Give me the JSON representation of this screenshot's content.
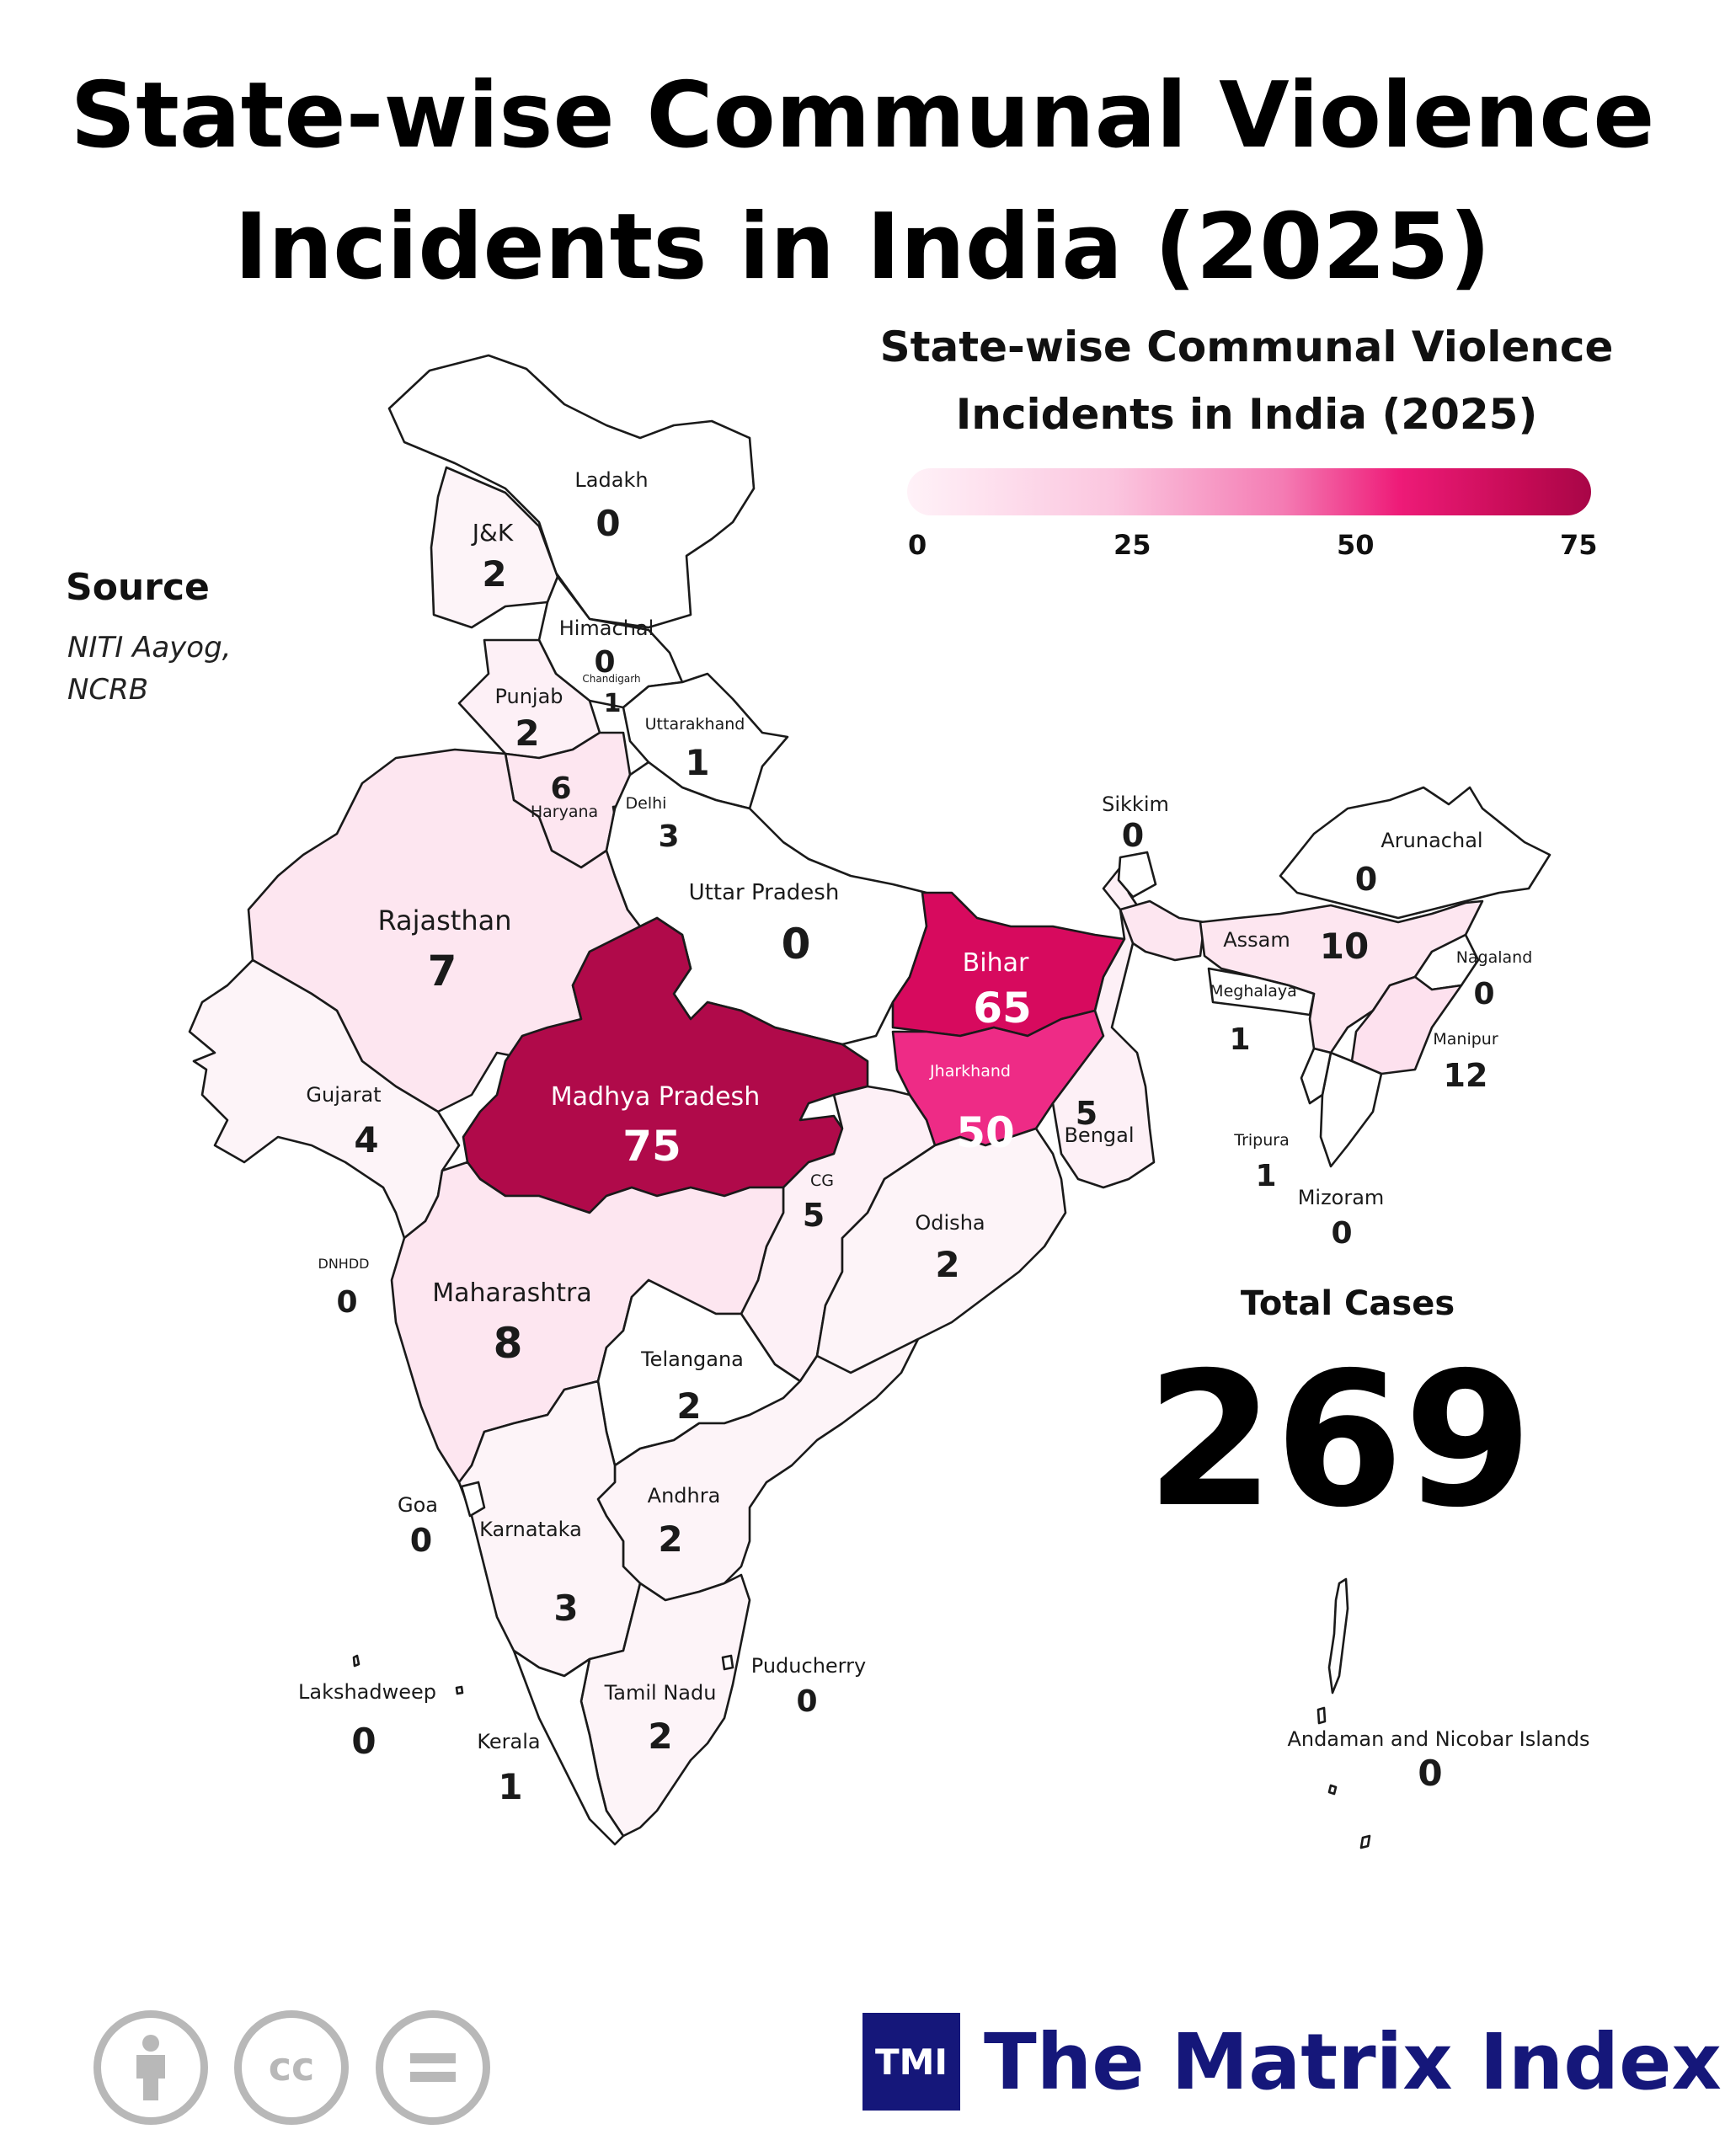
{
  "title": "State-wise Communal Violence Incidents in India (2025)",
  "legend": {
    "title": "State-wise Communal Violence Incidents in India (2025)",
    "ticks": [
      "0",
      "25",
      "50",
      "75"
    ],
    "colors": [
      "#fff2f8",
      "#f47bb3",
      "#ee1b78",
      "#a80647"
    ]
  },
  "source": {
    "heading": "Source",
    "lines": [
      "NITI Aayog,",
      "NCRB"
    ]
  },
  "states": {
    "ladakh": {
      "name": "Ladakh",
      "value": "0"
    },
    "jk": {
      "name": "J&K",
      "value": "2"
    },
    "himachal": {
      "name": "Himachal",
      "value": "0"
    },
    "chandigarh": {
      "name": "Chandigarh",
      "value": "1"
    },
    "punjab": {
      "name": "Punjab",
      "value": "2"
    },
    "uttarakhand": {
      "name": "Uttarakhand",
      "value": "1"
    },
    "haryana": {
      "name": "Haryana",
      "value": "6"
    },
    "delhi": {
      "name": "Delhi",
      "value": "3"
    },
    "rajasthan": {
      "name": "Rajasthan",
      "value": "7"
    },
    "uttar_pradesh": {
      "name": "Uttar Pradesh",
      "value": "0"
    },
    "bihar": {
      "name": "Bihar",
      "value": "65"
    },
    "jharkhand": {
      "name": "Jharkhand",
      "value": "50"
    },
    "bengal": {
      "name": "Bengal",
      "value": "5"
    },
    "sikkim": {
      "name": "Sikkim",
      "value": "0"
    },
    "arunachal": {
      "name": "Arunachal",
      "value": "0"
    },
    "assam": {
      "name": "Assam",
      "value": "10"
    },
    "meghalaya": {
      "name": "Meghalaya",
      "value": "1"
    },
    "nagaland": {
      "name": "Nagaland",
      "value": "0"
    },
    "manipur": {
      "name": "Manipur",
      "value": "12"
    },
    "tripura": {
      "name": "Tripura",
      "value": "1"
    },
    "mizoram": {
      "name": "Mizoram",
      "value": "0"
    },
    "gujarat": {
      "name": "Gujarat",
      "value": "4"
    },
    "madhya_pradesh": {
      "name": "Madhya Pradesh",
      "value": "75"
    },
    "cg": {
      "name": "CG",
      "value": "5"
    },
    "odisha": {
      "name": "Odisha",
      "value": "2"
    },
    "dnhdd": {
      "name": "DNHDD",
      "value": "0"
    },
    "maharashtra": {
      "name": "Maharashtra",
      "value": "8"
    },
    "telangana": {
      "name": "Telangana",
      "value": "2"
    },
    "goa": {
      "name": "Goa",
      "value": "0"
    },
    "karnataka": {
      "name": "Karnataka",
      "value": "3"
    },
    "andhra": {
      "name": "Andhra",
      "value": "2"
    },
    "tamil_nadu": {
      "name": "Tamil Nadu",
      "value": "2"
    },
    "puducherry": {
      "name": "Puducherry",
      "value": "0"
    },
    "kerala": {
      "name": "Kerala",
      "value": "1"
    },
    "lakshadweep": {
      "name": "Lakshadweep",
      "value": "0"
    },
    "andaman": {
      "name": "Andaman and Nicobar Islands",
      "value": "0"
    }
  },
  "total": {
    "label": "Total Cases",
    "value": "269"
  },
  "license_icons": [
    "attribution-icon",
    "creative-commons-icon",
    "no-derivatives-icon"
  ],
  "brand": {
    "logo": "TMI",
    "name": "The Matrix Index",
    "color": "#15177a"
  }
}
